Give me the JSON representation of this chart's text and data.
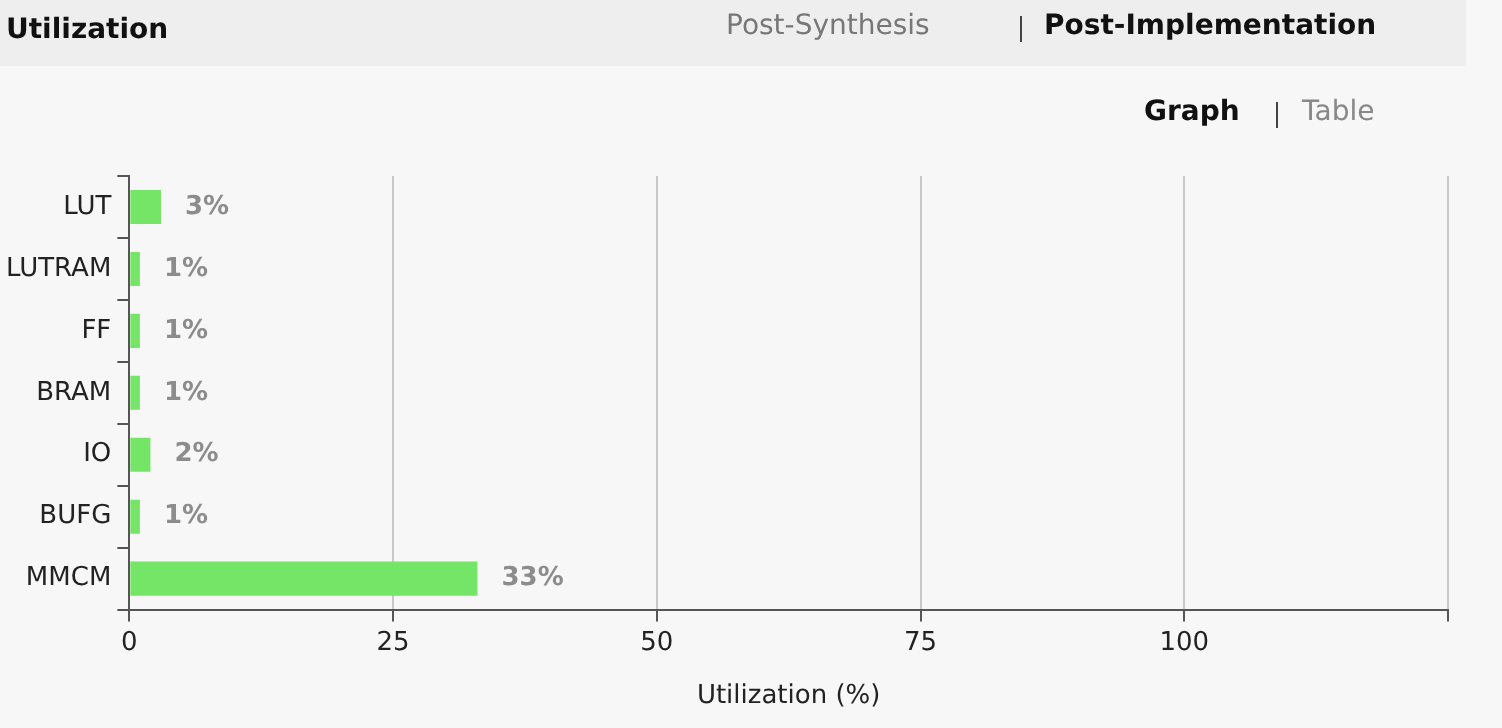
{
  "chart_data": {
    "type": "bar",
    "orientation": "horizontal",
    "title": "Utilization",
    "xlabel": "Utilization (%)",
    "categories": [
      "LUT",
      "LUTRAM",
      "FF",
      "BRAM",
      "IO",
      "BUFG",
      "MMCM"
    ],
    "values": [
      3,
      1,
      1,
      1,
      2,
      1,
      33
    ],
    "value_labels": [
      "3%",
      "1%",
      "1%",
      "1%",
      "2%",
      "1%",
      "33%"
    ],
    "color": "#74e567",
    "xlim": [
      0,
      125
    ],
    "xticks": [
      0,
      25,
      50,
      75,
      100,
      {
        "value": 125,
        "label": null
      }
    ],
    "grid": "x",
    "legend": false,
    "annotations": [
      "Post-Synthesis",
      "Post-Implementation",
      "Graph",
      "Table"
    ]
  }
}
